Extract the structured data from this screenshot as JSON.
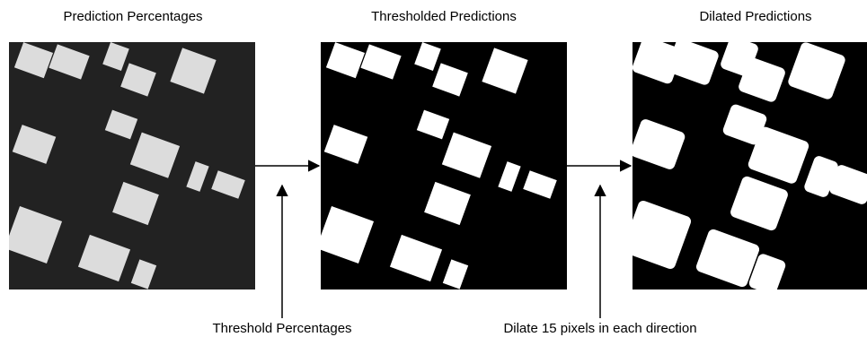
{
  "panels": [
    {
      "title": "Prediction Percentages"
    },
    {
      "title": "Thresholded Predictions"
    },
    {
      "title": "Dilated Predictions"
    }
  ],
  "steps": [
    {
      "label": "Threshold Percentages"
    },
    {
      "label": "Dilate 15 pixels in each direction"
    }
  ]
}
